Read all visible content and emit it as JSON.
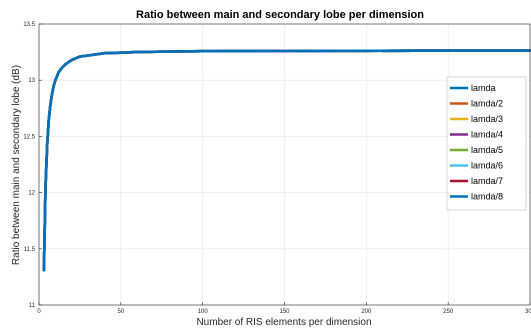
{
  "chart_data": {
    "type": "line",
    "title": "Ratio between main and secondary lobe per dimension",
    "xlabel": "Number of RIS elements per dimension",
    "ylabel": "Ratio between main and secondary lobe (dB)",
    "xlim": [
      0,
      300
    ],
    "ylim": [
      11,
      13.5
    ],
    "xticks": [
      0,
      50,
      100,
      150,
      200,
      250,
      300
    ],
    "yticks": [
      11,
      11.5,
      12,
      12.5,
      13,
      13.5
    ],
    "grid": true,
    "legend_position": "right",
    "x": [
      3,
      4,
      5,
      6,
      7,
      8,
      9,
      10,
      12,
      14,
      16,
      18,
      20,
      25,
      30,
      40,
      50,
      60,
      80,
      100,
      150,
      200,
      250,
      300
    ],
    "series": [
      {
        "name": "lamda",
        "color": "#0072BD",
        "values": [
          11.31,
          12.05,
          12.43,
          12.65,
          12.79,
          12.88,
          12.95,
          13.0,
          13.07,
          13.11,
          13.14,
          13.16,
          13.18,
          13.21,
          13.22,
          13.24,
          13.245,
          13.25,
          13.255,
          13.258,
          13.26,
          13.262,
          13.263,
          13.264
        ]
      },
      {
        "name": "lamda/2",
        "color": "#D95319",
        "values": [
          11.31,
          12.05,
          12.43,
          12.65,
          12.79,
          12.88,
          12.95,
          13.0,
          13.07,
          13.11,
          13.14,
          13.16,
          13.18,
          13.21,
          13.22,
          13.24,
          13.245,
          13.25,
          13.255,
          13.258,
          13.26,
          13.262,
          13.263,
          13.264
        ]
      },
      {
        "name": "lamda/3",
        "color": "#EDB120",
        "values": [
          11.31,
          12.05,
          12.43,
          12.65,
          12.79,
          12.88,
          12.95,
          13.0,
          13.07,
          13.11,
          13.14,
          13.16,
          13.18,
          13.21,
          13.22,
          13.24,
          13.245,
          13.25,
          13.255,
          13.258,
          13.26,
          13.262,
          13.263,
          13.264
        ]
      },
      {
        "name": "lamda/4",
        "color": "#7E2F8E",
        "values": [
          11.31,
          12.05,
          12.43,
          12.65,
          12.79,
          12.88,
          12.95,
          13.0,
          13.07,
          13.11,
          13.14,
          13.16,
          13.18,
          13.21,
          13.22,
          13.24,
          13.245,
          13.25,
          13.255,
          13.258,
          13.26,
          13.262,
          13.263,
          13.264
        ]
      },
      {
        "name": "lamda/5",
        "color": "#77AC30",
        "values": [
          11.31,
          12.05,
          12.43,
          12.65,
          12.79,
          12.88,
          12.95,
          13.0,
          13.07,
          13.11,
          13.14,
          13.16,
          13.18,
          13.21,
          13.22,
          13.24,
          13.245,
          13.25,
          13.255,
          13.258,
          13.26,
          13.262,
          13.263,
          13.264
        ]
      },
      {
        "name": "lamda/6",
        "color": "#4DBEEE",
        "values": [
          11.31,
          12.05,
          12.43,
          12.65,
          12.79,
          12.88,
          12.95,
          13.0,
          13.07,
          13.11,
          13.14,
          13.16,
          13.18,
          13.21,
          13.22,
          13.24,
          13.245,
          13.25,
          13.255,
          13.258,
          13.26,
          13.262,
          13.263,
          13.264
        ]
      },
      {
        "name": "lamda/7",
        "color": "#A2142F",
        "values": [
          11.31,
          12.05,
          12.43,
          12.65,
          12.79,
          12.88,
          12.95,
          13.0,
          13.07,
          13.11,
          13.14,
          13.16,
          13.18,
          13.21,
          13.22,
          13.24,
          13.245,
          13.25,
          13.255,
          13.258,
          13.26,
          13.262,
          13.263,
          13.264
        ]
      },
      {
        "name": "lamda/8",
        "color": "#0072BD",
        "values": [
          11.31,
          12.05,
          12.43,
          12.65,
          12.79,
          12.88,
          12.95,
          13.0,
          13.07,
          13.11,
          13.14,
          13.16,
          13.18,
          13.21,
          13.22,
          13.24,
          13.245,
          13.25,
          13.255,
          13.258,
          13.26,
          13.262,
          13.263,
          13.264
        ]
      }
    ]
  }
}
